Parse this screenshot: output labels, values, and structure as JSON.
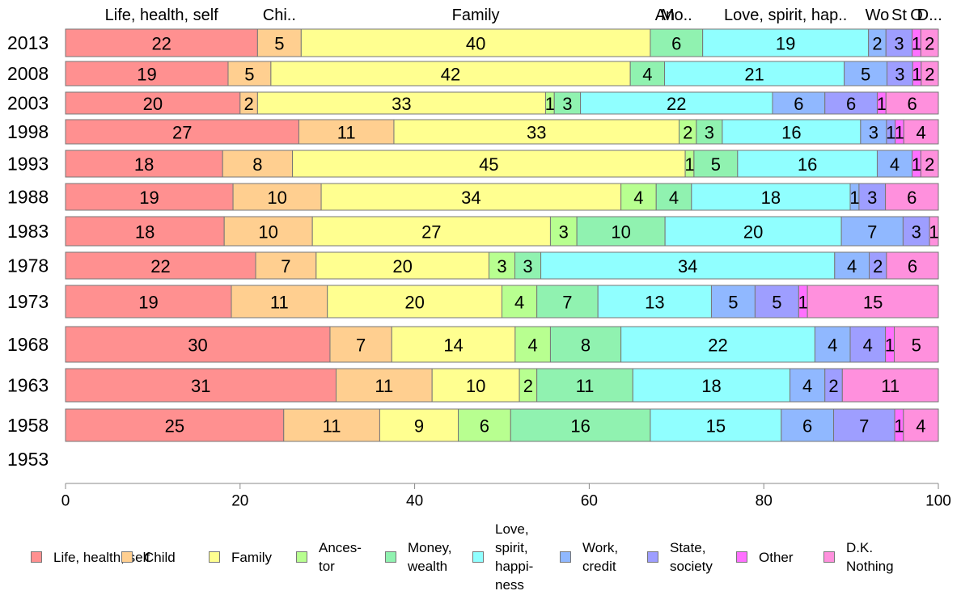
{
  "chart_data": {
    "type": "bar",
    "orientation": "horizontal",
    "stacked": true,
    "title": "",
    "xlabel": "",
    "ylabel": "",
    "xlim": [
      0,
      100
    ],
    "x_ticks": [
      0,
      20,
      40,
      60,
      80,
      100
    ],
    "grid": false,
    "legend_position": "bottom",
    "categories": [
      "2013",
      "2008",
      "2003",
      "1998",
      "1993",
      "1988",
      "1983",
      "1978",
      "1973",
      "1968",
      "1963",
      "1958",
      "1953"
    ],
    "series": [
      {
        "name": "Life, health, self",
        "header": "Life, health, self",
        "color": "#ff9090",
        "values": [
          22,
          19,
          20,
          27,
          18,
          19,
          18,
          22,
          19,
          30,
          31,
          25,
          null
        ]
      },
      {
        "name": "Child",
        "header": "Chi..",
        "color": "#ffcf90",
        "values": [
          5,
          5,
          2,
          11,
          8,
          10,
          10,
          7,
          11,
          7,
          11,
          11,
          null
        ]
      },
      {
        "name": "Family",
        "header": "Family",
        "color": "#ffff90",
        "values": [
          40,
          42,
          33,
          33,
          45,
          34,
          27,
          20,
          20,
          14,
          10,
          9,
          null
        ]
      },
      {
        "name": "Ances-\ntor",
        "header": "An",
        "color": "#b8ff90",
        "values": [
          null,
          null,
          1,
          2,
          1,
          4,
          3,
          3,
          4,
          4,
          2,
          6,
          null
        ]
      },
      {
        "name": "Money,\nwealth",
        "header": "Mo..",
        "color": "#90f2b0",
        "values": [
          6,
          4,
          3,
          3,
          5,
          4,
          10,
          3,
          7,
          8,
          11,
          16,
          null
        ]
      },
      {
        "name": "Love,\nspirit,\nhappi-\nness",
        "header": "Love, spirit, hap..",
        "color": "#90ffff",
        "values": [
          19,
          21,
          22,
          16,
          16,
          18,
          20,
          34,
          13,
          22,
          18,
          15,
          null
        ]
      },
      {
        "name": "Work,\ncredit",
        "header": "Wo",
        "color": "#90b8ff",
        "values": [
          2,
          5,
          6,
          3,
          4,
          1,
          7,
          4,
          5,
          4,
          4,
          6,
          null
        ]
      },
      {
        "name": "State,\nsociety",
        "header": "St",
        "color": "#9e9eff",
        "values": [
          3,
          3,
          6,
          1,
          null,
          3,
          3,
          2,
          5,
          4,
          2,
          7,
          null
        ]
      },
      {
        "name": "Other",
        "header": "O",
        "color": "#ff70ff",
        "values": [
          1,
          1,
          1,
          1,
          1,
          null,
          null,
          null,
          1,
          1,
          null,
          1,
          null
        ]
      },
      {
        "name": "D.K.\nNothing",
        "header": "D...",
        "color": "#ff90dd",
        "values": [
          2,
          2,
          6,
          4,
          2,
          6,
          1,
          6,
          15,
          5,
          11,
          4,
          null
        ]
      }
    ]
  }
}
